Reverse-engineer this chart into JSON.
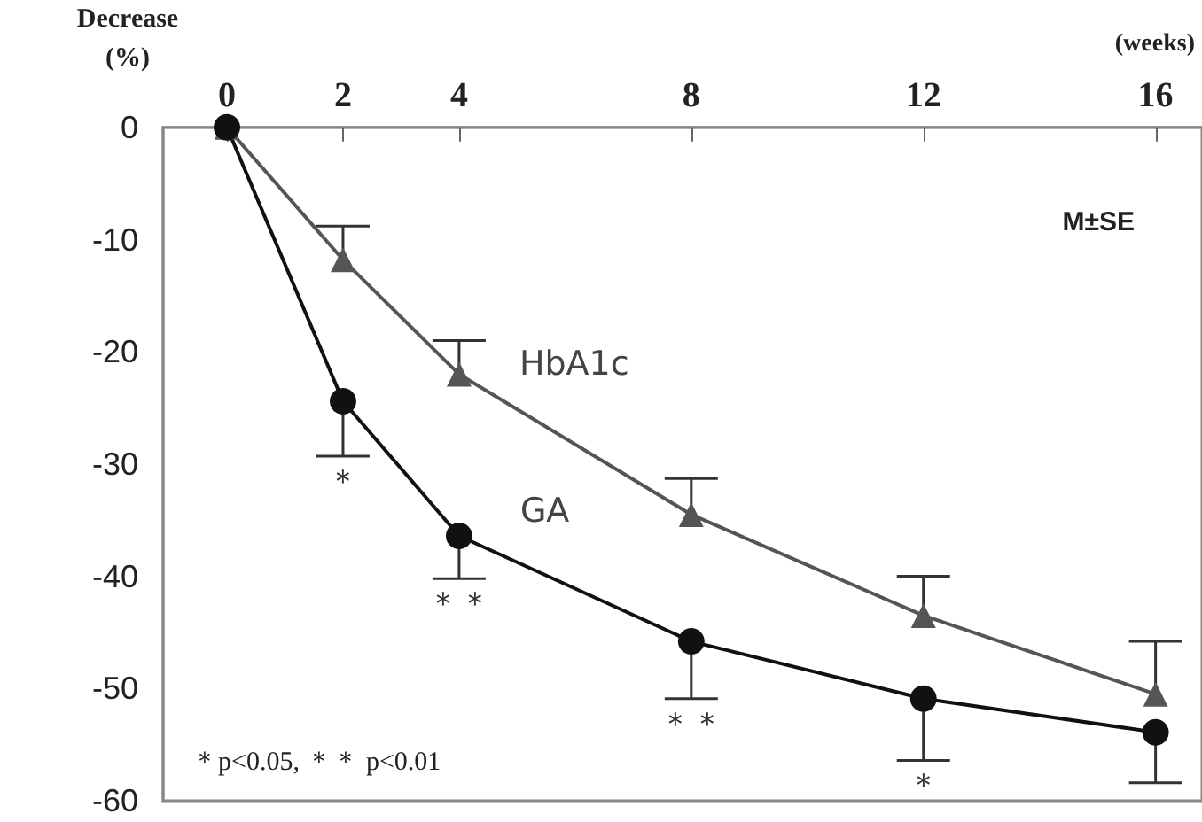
{
  "chart_data": {
    "type": "line",
    "xlabel": "(weeks)",
    "ylabel": "Decrease\n(%)",
    "x": [
      0,
      2,
      4,
      8,
      12,
      16
    ],
    "xlim": [
      -1.1,
      16.8
    ],
    "xticks": [
      0,
      2,
      4,
      8,
      12,
      16
    ],
    "ylim": [
      -60,
      0
    ],
    "yticks": [
      0,
      -10,
      -20,
      -30,
      -40,
      -50,
      -60
    ],
    "grid": false,
    "legend": false,
    "series": [
      {
        "name": "HbA1c",
        "color": "#555555",
        "marker": "triangle",
        "values": [
          0,
          -11.8,
          -22,
          -34.5,
          -43.5,
          -50.5
        ],
        "errors": [
          null,
          [
            -11.8,
            -8.8
          ],
          [
            -22,
            -19
          ],
          [
            -34.5,
            -31.3
          ],
          [
            -43.5,
            -40
          ],
          [
            -50.5,
            -45.8
          ]
        ]
      },
      {
        "name": "GA",
        "color": "#111111",
        "marker": "circle",
        "values": [
          0,
          -24.4,
          -36.4,
          -45.8,
          -50.9,
          -53.9
        ],
        "errors": [
          null,
          [
            -29.3,
            -24.4
          ],
          [
            -40.2,
            -36.4
          ],
          [
            -50.9,
            -45.8
          ],
          [
            -56.4,
            -50.9
          ],
          [
            -58.4,
            -53.9
          ]
        ]
      }
    ],
    "annotations": [
      "M±SE",
      "＊p<0.05, ＊＊ p<0.01",
      {
        "text": "＊",
        "x": 2,
        "y": -24.4
      },
      {
        "text": "＊＊",
        "x": 4,
        "y": -36.4
      },
      {
        "text": "＊＊",
        "x": 8,
        "y": -45.8
      },
      {
        "text": "＊",
        "x": 12,
        "y": -50.9
      }
    ]
  }
}
